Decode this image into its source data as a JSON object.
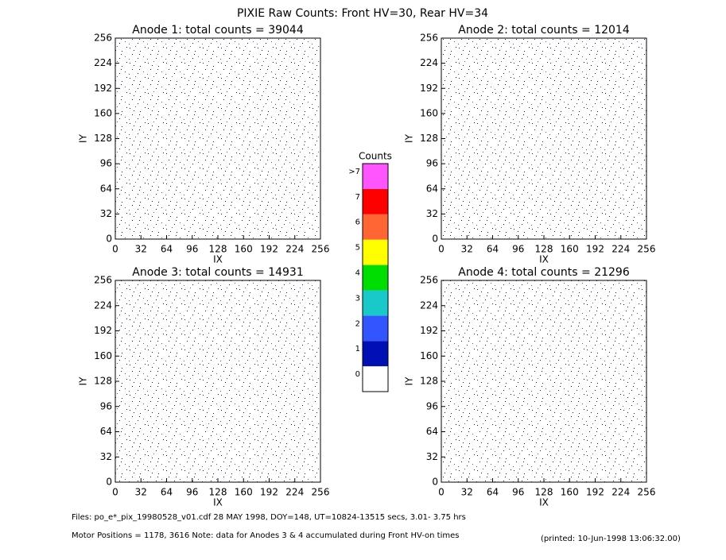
{
  "title": "PIXIE Raw Counts:  Front HV=30, Rear HV=34",
  "chart_data": [
    {
      "type": "heatmap",
      "title": "Anode 1: total counts = 39044",
      "xlabel": "IX",
      "ylabel": "IY",
      "xlim": [
        0,
        256
      ],
      "xticks": [
        0,
        32,
        64,
        96,
        128,
        160,
        192,
        224,
        256
      ],
      "ylim": [
        0,
        256
      ],
      "yticks": [
        0,
        32,
        64,
        96,
        128,
        160,
        192,
        224,
        256
      ]
    },
    {
      "type": "heatmap",
      "title": "Anode 2: total counts = 12014",
      "xlabel": "IX",
      "ylabel": "IY",
      "xlim": [
        0,
        256
      ],
      "xticks": [
        0,
        32,
        64,
        96,
        128,
        160,
        192,
        224,
        256
      ],
      "ylim": [
        0,
        256
      ],
      "yticks": [
        0,
        32,
        64,
        96,
        128,
        160,
        192,
        224,
        256
      ]
    },
    {
      "type": "heatmap",
      "title": "Anode 3: total counts = 14931",
      "xlabel": "IX",
      "ylabel": "IY",
      "xlim": [
        0,
        256
      ],
      "xticks": [
        0,
        32,
        64,
        96,
        128,
        160,
        192,
        224,
        256
      ],
      "ylim": [
        0,
        256
      ],
      "yticks": [
        0,
        32,
        64,
        96,
        128,
        160,
        192,
        224,
        256
      ]
    },
    {
      "type": "heatmap",
      "title": "Anode 4: total counts = 21296",
      "xlabel": "IX",
      "ylabel": "IY",
      "xlim": [
        0,
        256
      ],
      "xticks": [
        0,
        32,
        64,
        96,
        128,
        160,
        192,
        224,
        256
      ],
      "ylim": [
        0,
        256
      ],
      "yticks": [
        0,
        32,
        64,
        96,
        128,
        160,
        192,
        224,
        256
      ]
    }
  ],
  "colorbar": {
    "title": "Counts",
    "levels": [
      {
        "label": "0",
        "color": "#ffffff"
      },
      {
        "label": "1",
        "color": "#0010b4"
      },
      {
        "label": "2",
        "color": "#3355ff"
      },
      {
        "label": "3",
        "color": "#19c8c8"
      },
      {
        "label": "4",
        "color": "#00dd00"
      },
      {
        "label": "5",
        "color": "#ffff00"
      },
      {
        "label": "6",
        "color": "#ff6633"
      },
      {
        "label": "7",
        "color": "#ff0000"
      },
      {
        "label": ">7",
        "color": "#ff55ff"
      }
    ]
  },
  "footer": {
    "files": "Files: po_e*_pix_19980528_v01.cdf    28 MAY 1998, DOY=148, UT=10824-13515 secs,  3.01- 3.75 hrs",
    "motor": "Motor Positions = 1178, 3616   Note: data for Anodes 3 & 4 accumulated during Front HV-on times",
    "printed": "(printed: 10-Jun-1998 13:06:32.00)"
  }
}
